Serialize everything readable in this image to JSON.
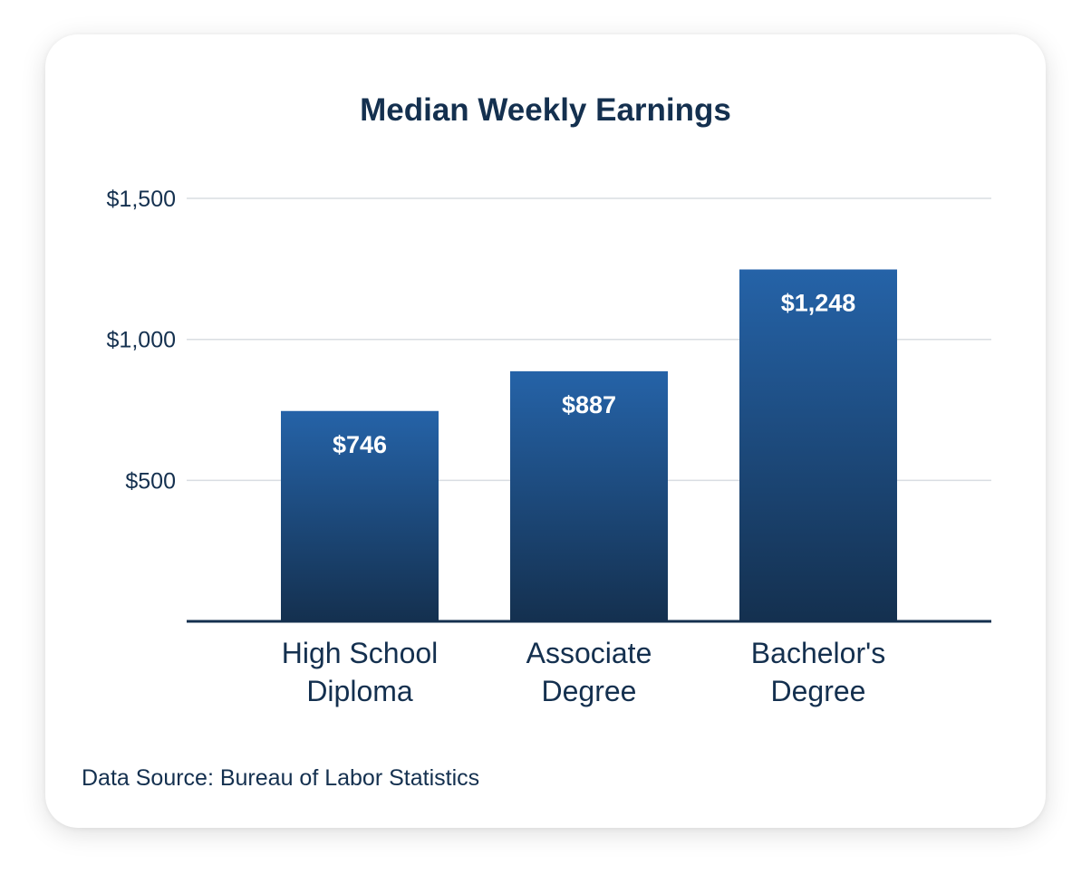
{
  "chart_data": {
    "type": "bar",
    "title": "Median Weekly Earnings",
    "categories": [
      [
        "High School",
        "Diploma"
      ],
      [
        "Associate",
        "Degree"
      ],
      [
        "Bachelor's",
        "Degree"
      ]
    ],
    "values": [
      746,
      887,
      1248
    ],
    "value_labels": [
      "$746",
      "$887",
      "$1,248"
    ],
    "yticks": [
      500,
      1000,
      1500
    ],
    "ytick_labels": [
      "$500",
      "$1,000",
      "$1,500"
    ],
    "ylim": [
      0,
      1500
    ],
    "grid": true,
    "colors": {
      "bar_top": "#2563a8",
      "bar_bottom": "#14304f",
      "text": "#14304f",
      "grid": "#d9dde2"
    },
    "source": "Data Source: Bureau of Labor Statistics"
  }
}
